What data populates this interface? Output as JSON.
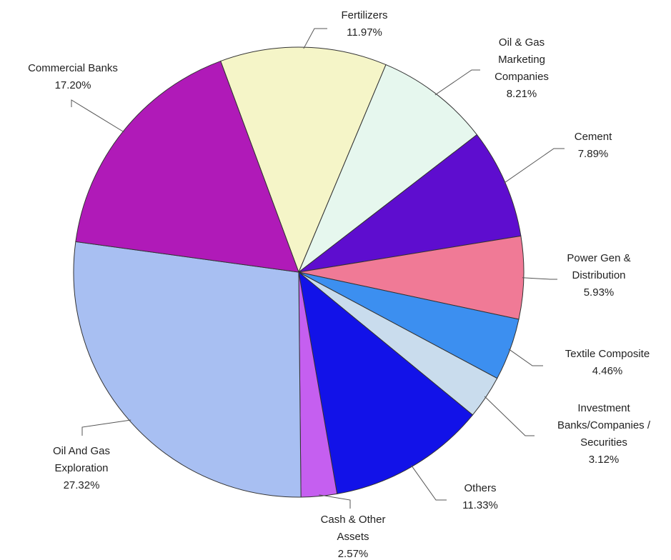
{
  "chart_data": {
    "type": "pie",
    "categories": [
      "Fertilizers",
      "Oil & Gas Marketing Companies",
      "Cement",
      "Power Gen & Distribution",
      "Textile Composite",
      "Investment Banks/Companies / Securities",
      "Others",
      "Cash & Other Assets",
      "Oil And Gas Exploration",
      "Commercial Banks"
    ],
    "values": [
      11.97,
      8.21,
      7.89,
      5.93,
      4.46,
      3.12,
      11.33,
      2.57,
      27.32,
      17.2
    ],
    "value_labels": [
      "11.97%",
      "8.21%",
      "7.89%",
      "5.93%",
      "4.46%",
      "3.12%",
      "11.33%",
      "2.57%",
      "27.32%",
      "17.20%"
    ],
    "colors": [
      "#f5f5c8",
      "#e6f7ee",
      "#5e0dcf",
      "#f07a96",
      "#3c8ff0",
      "#c9dced",
      "#1212e8",
      "#c55ff0",
      "#a8bff2",
      "#b01ab8"
    ]
  }
}
